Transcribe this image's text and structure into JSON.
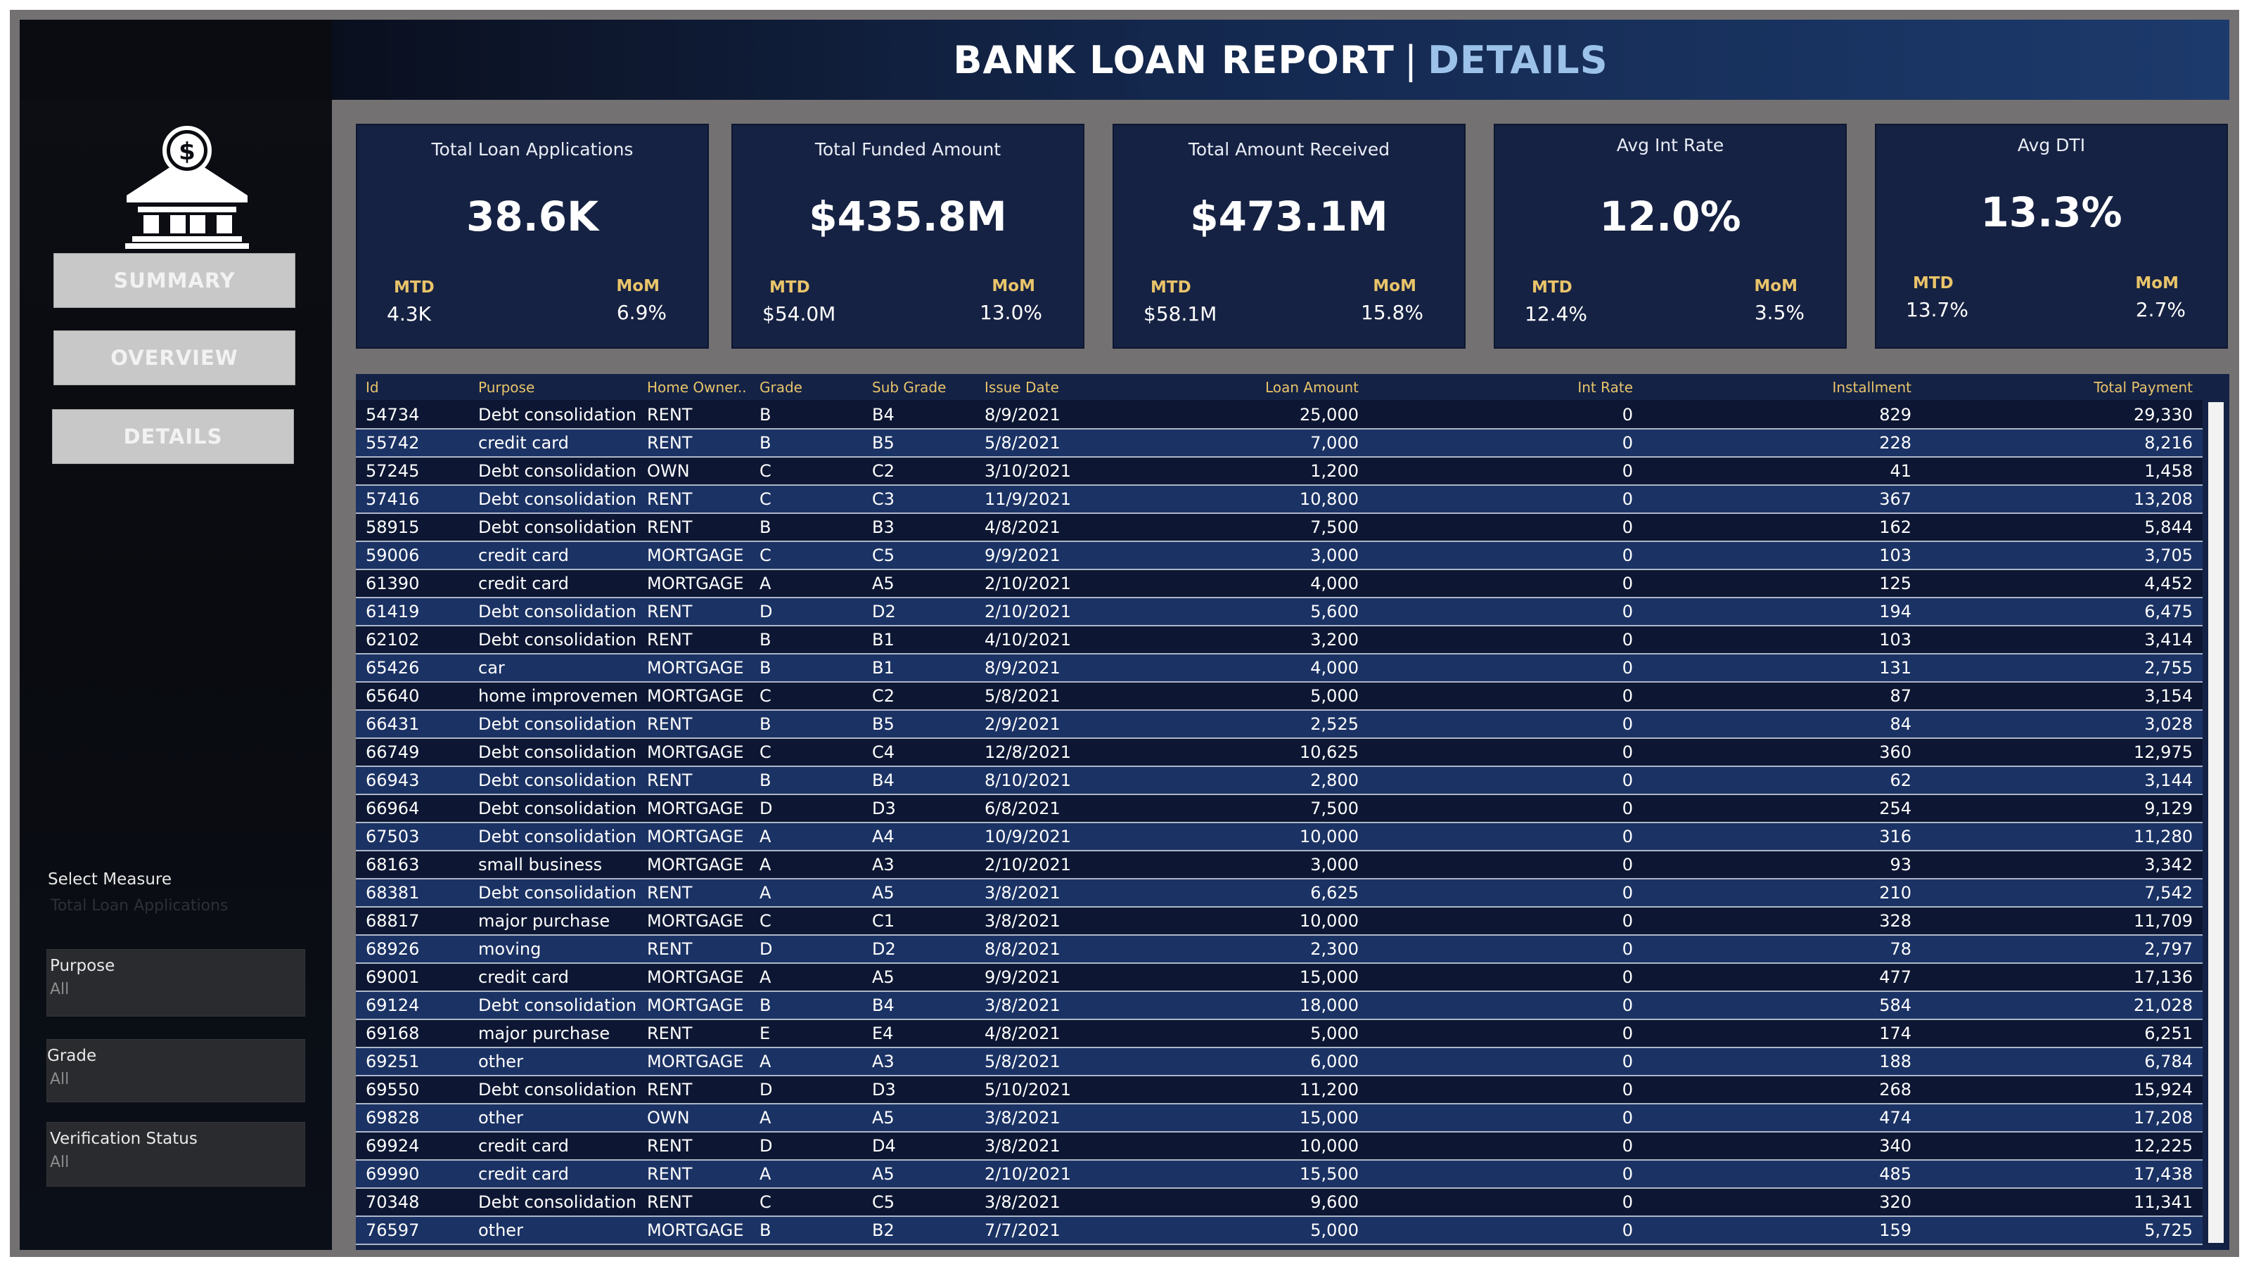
{
  "header": {
    "title": "BANK LOAN REPORT",
    "separator": "|",
    "subtitle": "DETAILS"
  },
  "nav": {
    "summary": "SUMMARY",
    "overview": "OVERVIEW",
    "details": "DETAILS"
  },
  "filters": {
    "select_measure_label": "Select Measure",
    "select_measure_value": "Total Loan Applications",
    "purpose_label": "Purpose",
    "purpose_value": "All",
    "grade_label": "Grade",
    "grade_value": "All",
    "verification_label": "Verification Status",
    "verification_value": "All"
  },
  "kpis": [
    {
      "title": "Total Loan Applications",
      "value": "38.6K",
      "mtd_label": "MTD",
      "mtd": "4.3K",
      "mom_label": "MoM",
      "mom": "6.9%"
    },
    {
      "title": "Total Funded Amount",
      "value": "$435.8M",
      "mtd_label": "MTD",
      "mtd": "$54.0M",
      "mom_label": "MoM",
      "mom": "13.0%"
    },
    {
      "title": "Total Amount Received",
      "value": "$473.1M",
      "mtd_label": "MTD",
      "mtd": "$58.1M",
      "mom_label": "MoM",
      "mom": "15.8%"
    },
    {
      "title": "Avg Int Rate",
      "value": "12.0%",
      "mtd_label": "MTD",
      "mtd": "12.4%",
      "mom_label": "MoM",
      "mom": "3.5%"
    },
    {
      "title": "Avg DTI",
      "value": "13.3%",
      "mtd_label": "MTD",
      "mtd": "13.7%",
      "mom_label": "MoM",
      "mom": "2.7%"
    }
  ],
  "table": {
    "columns": [
      "Id",
      "Purpose",
      "Home Owner..",
      "Grade",
      "Sub Grade",
      "Issue Date",
      "Loan Amount",
      "Int Rate",
      "Installment",
      "Total Payment"
    ],
    "rows": [
      [
        "54734",
        "Debt consolidation",
        "RENT",
        "B",
        "B4",
        "8/9/2021",
        "25,000",
        "0",
        "829",
        "29,330"
      ],
      [
        "55742",
        "credit card",
        "RENT",
        "B",
        "B5",
        "5/8/2021",
        "7,000",
        "0",
        "228",
        "8,216"
      ],
      [
        "57245",
        "Debt consolidation",
        "OWN",
        "C",
        "C2",
        "3/10/2021",
        "1,200",
        "0",
        "41",
        "1,458"
      ],
      [
        "57416",
        "Debt consolidation",
        "RENT",
        "C",
        "C3",
        "11/9/2021",
        "10,800",
        "0",
        "367",
        "13,208"
      ],
      [
        "58915",
        "Debt consolidation",
        "RENT",
        "B",
        "B3",
        "4/8/2021",
        "7,500",
        "0",
        "162",
        "5,844"
      ],
      [
        "59006",
        "credit card",
        "MORTGAGE",
        "C",
        "C5",
        "9/9/2021",
        "3,000",
        "0",
        "103",
        "3,705"
      ],
      [
        "61390",
        "credit card",
        "MORTGAGE",
        "A",
        "A5",
        "2/10/2021",
        "4,000",
        "0",
        "125",
        "4,452"
      ],
      [
        "61419",
        "Debt consolidation",
        "RENT",
        "D",
        "D2",
        "2/10/2021",
        "5,600",
        "0",
        "194",
        "6,475"
      ],
      [
        "62102",
        "Debt consolidation",
        "RENT",
        "B",
        "B1",
        "4/10/2021",
        "3,200",
        "0",
        "103",
        "3,414"
      ],
      [
        "65426",
        "car",
        "MORTGAGE",
        "B",
        "B1",
        "8/9/2021",
        "4,000",
        "0",
        "131",
        "2,755"
      ],
      [
        "65640",
        "home improvement",
        "MORTGAGE",
        "C",
        "C2",
        "5/8/2021",
        "5,000",
        "0",
        "87",
        "3,154"
      ],
      [
        "66431",
        "Debt consolidation",
        "RENT",
        "B",
        "B5",
        "2/9/2021",
        "2,525",
        "0",
        "84",
        "3,028"
      ],
      [
        "66749",
        "Debt consolidation",
        "MORTGAGE",
        "C",
        "C4",
        "12/8/2021",
        "10,625",
        "0",
        "360",
        "12,975"
      ],
      [
        "66943",
        "Debt consolidation",
        "RENT",
        "B",
        "B4",
        "8/10/2021",
        "2,800",
        "0",
        "62",
        "3,144"
      ],
      [
        "66964",
        "Debt consolidation",
        "MORTGAGE",
        "D",
        "D3",
        "6/8/2021",
        "7,500",
        "0",
        "254",
        "9,129"
      ],
      [
        "67503",
        "Debt consolidation",
        "MORTGAGE",
        "A",
        "A4",
        "10/9/2021",
        "10,000",
        "0",
        "316",
        "11,280"
      ],
      [
        "68163",
        "small business",
        "MORTGAGE",
        "A",
        "A3",
        "2/10/2021",
        "3,000",
        "0",
        "93",
        "3,342"
      ],
      [
        "68381",
        "Debt consolidation",
        "RENT",
        "A",
        "A5",
        "3/8/2021",
        "6,625",
        "0",
        "210",
        "7,542"
      ],
      [
        "68817",
        "major purchase",
        "MORTGAGE",
        "C",
        "C1",
        "3/8/2021",
        "10,000",
        "0",
        "328",
        "11,709"
      ],
      [
        "68926",
        "moving",
        "RENT",
        "D",
        "D2",
        "8/8/2021",
        "2,300",
        "0",
        "78",
        "2,797"
      ],
      [
        "69001",
        "credit card",
        "MORTGAGE",
        "A",
        "A5",
        "9/9/2021",
        "15,000",
        "0",
        "477",
        "17,136"
      ],
      [
        "69124",
        "Debt consolidation",
        "MORTGAGE",
        "B",
        "B4",
        "3/8/2021",
        "18,000",
        "0",
        "584",
        "21,028"
      ],
      [
        "69168",
        "major purchase",
        "RENT",
        "E",
        "E4",
        "4/8/2021",
        "5,000",
        "0",
        "174",
        "6,251"
      ],
      [
        "69251",
        "other",
        "MORTGAGE",
        "A",
        "A3",
        "5/8/2021",
        "6,000",
        "0",
        "188",
        "6,784"
      ],
      [
        "69550",
        "Debt consolidation",
        "RENT",
        "D",
        "D3",
        "5/10/2021",
        "11,200",
        "0",
        "268",
        "15,924"
      ],
      [
        "69828",
        "other",
        "OWN",
        "A",
        "A5",
        "3/8/2021",
        "15,000",
        "0",
        "474",
        "17,208"
      ],
      [
        "69924",
        "credit card",
        "RENT",
        "D",
        "D4",
        "3/8/2021",
        "10,000",
        "0",
        "340",
        "12,225"
      ],
      [
        "69990",
        "credit card",
        "RENT",
        "A",
        "A5",
        "2/10/2021",
        "15,500",
        "0",
        "485",
        "17,438"
      ],
      [
        "70348",
        "Debt consolidation",
        "RENT",
        "C",
        "C5",
        "3/8/2021",
        "9,600",
        "0",
        "320",
        "11,341"
      ],
      [
        "76597",
        "other",
        "MORTGAGE",
        "B",
        "B2",
        "7/7/2021",
        "5,000",
        "0",
        "159",
        "5,725"
      ]
    ]
  },
  "icons": {
    "bank": "bank-icon"
  }
}
